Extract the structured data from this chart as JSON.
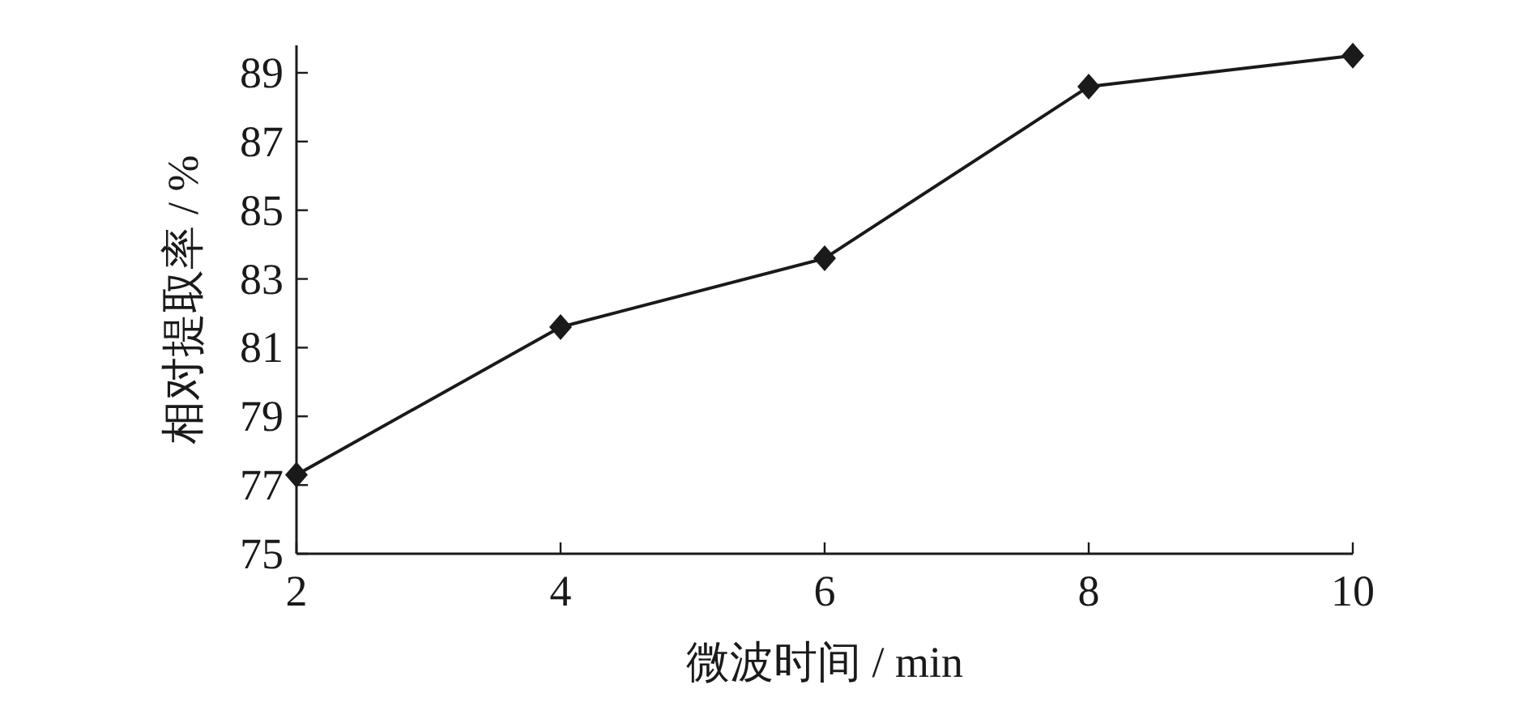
{
  "chart_data": {
    "type": "line",
    "xlabel": "微波时间 / min",
    "ylabel": "相对提取率 / %",
    "x": [
      2,
      4,
      6,
      8,
      10
    ],
    "series": [
      {
        "color": "#1a1a1a",
        "values": [
          77.3,
          81.6,
          83.6,
          88.6,
          89.5
        ]
      }
    ],
    "xlim": [
      2,
      10
    ],
    "xticks": [
      2,
      4,
      6,
      8,
      10
    ],
    "ylim": [
      75,
      89.8
    ],
    "yticks": [
      75,
      77,
      79,
      81,
      83,
      85,
      87,
      89
    ],
    "marker": "diamond",
    "line_style": "solid"
  }
}
